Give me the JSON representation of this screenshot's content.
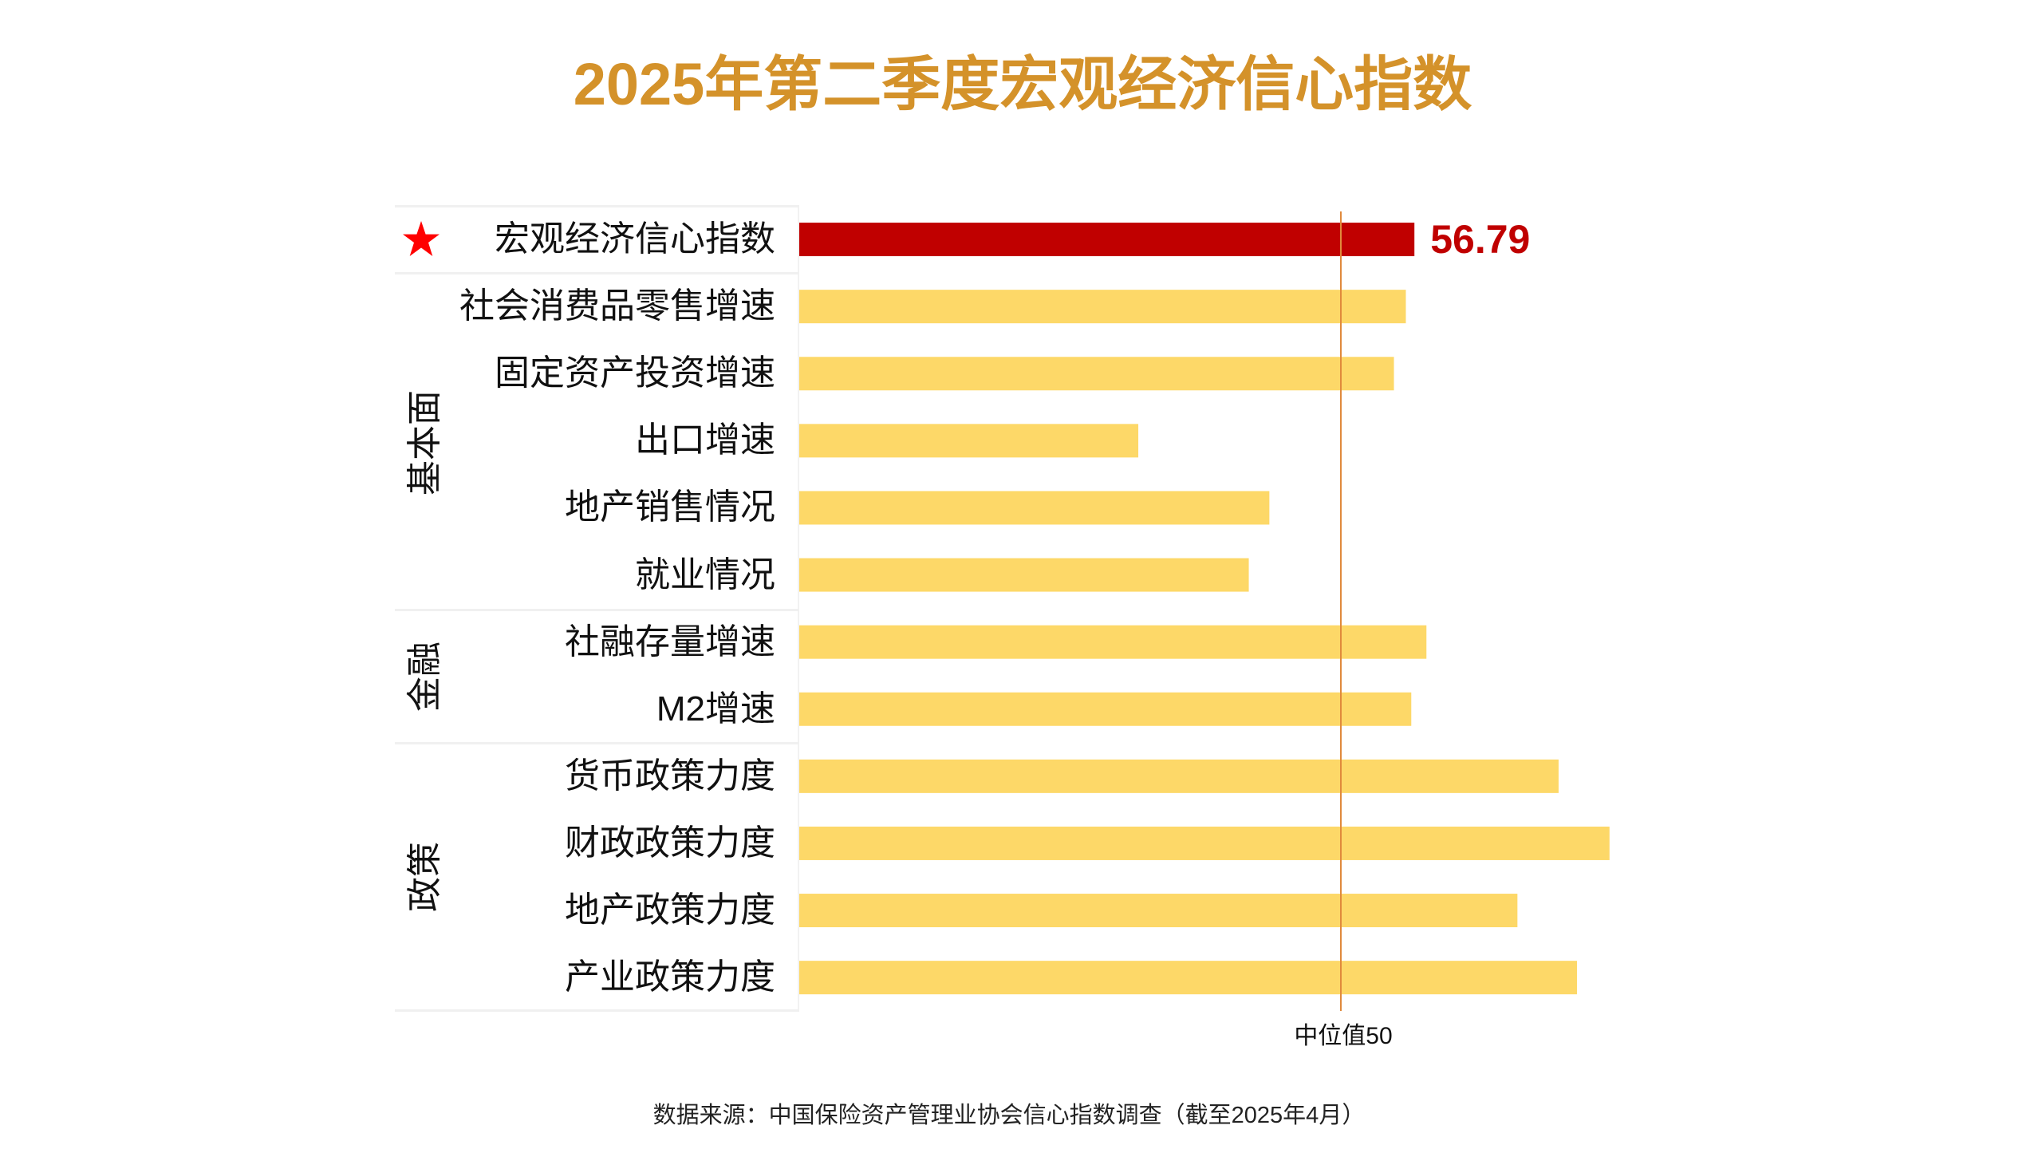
{
  "title": "2025年第二季度宏观经济信心指数",
  "footer": "数据来源：中国保险资产管理业协会信心指数调查（截至2025年4月）",
  "colors": {
    "title": "#D4922A",
    "highlight_bar": "#C00000",
    "highlight_label": "#C00000",
    "bar": "#FDD868",
    "reference_line": "#E08A3C",
    "star": "#FF0000"
  },
  "chart_data": {
    "type": "bar",
    "orientation": "horizontal",
    "title": "2025年第二季度宏观经济信心指数",
    "xlabel": "",
    "ylabel": "",
    "xlim": [
      0,
      100
    ],
    "grid": false,
    "legend": "none",
    "reference_line": {
      "value": 50,
      "label": "中位值50"
    },
    "groups": [
      {
        "name": "",
        "rows": [
          0
        ]
      },
      {
        "name": "基本面",
        "rows": [
          1,
          2,
          3,
          4,
          5
        ]
      },
      {
        "name": "金融",
        "rows": [
          6,
          7
        ]
      },
      {
        "name": "政策",
        "rows": [
          8,
          9,
          10,
          11
        ]
      }
    ],
    "categories": [
      "宏观经济信心指数",
      "社会消费品零售增速",
      "固定资产投资增速",
      "出口增速",
      "地产销售情况",
      "就业情况",
      "社融存量增速",
      "M2增速",
      "货币政策力度",
      "财政政策力度",
      "地产政策力度",
      "产业政策力度"
    ],
    "values": [
      56.79,
      56.0,
      54.9,
      31.3,
      43.4,
      41.5,
      57.9,
      56.5,
      70.1,
      74.8,
      66.3,
      71.8
    ],
    "highlight_index": 0,
    "data_labels": [
      {
        "index": 0,
        "text": "56.79"
      }
    ]
  }
}
